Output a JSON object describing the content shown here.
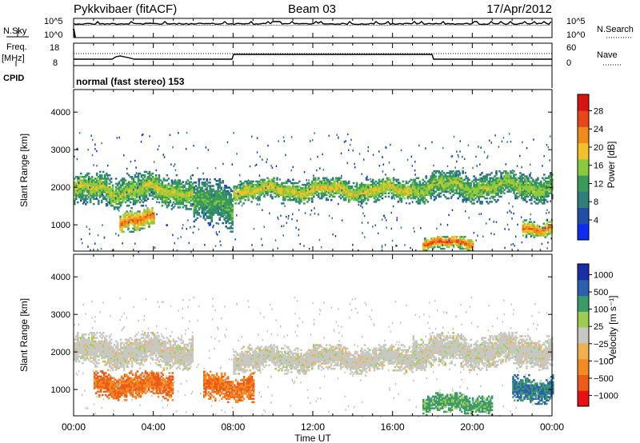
{
  "header": {
    "station": "Pykkvibaer (fitACF)",
    "beam": "Beam 03",
    "date": "17/Apr/2012"
  },
  "panels": {
    "nsky": {
      "label": "N.Sky",
      "ticks": [
        "10^5",
        "10^0"
      ],
      "right_ticks": [
        "10^5",
        "10^0"
      ],
      "right_label": "N.Search"
    },
    "freq": {
      "label": "Freq.",
      "unit": "[MHz]",
      "ticks": [
        "18",
        "8"
      ],
      "right_ticks": [
        "60",
        "0"
      ],
      "right_label": "Nave"
    },
    "cpid": {
      "label": "CPID",
      "text": "normal (fast stereo) 153"
    }
  },
  "x_axis": {
    "label": "Time UT",
    "ticks": [
      "00:00",
      "04:00",
      "08:00",
      "12:00",
      "16:00",
      "20:00",
      "00:00"
    ]
  },
  "colors": {
    "power_scale": [
      "#0d2cf0",
      "#204fa8",
      "#2f7f7a",
      "#3a9a5a",
      "#8acb3d",
      "#f2c028",
      "#f08a1c",
      "#e8461a",
      "#d81410"
    ],
    "velocity_scale": [
      "#e81010",
      "#ee5a18",
      "#f48b22",
      "#f0b050",
      "#c8c8c2",
      "#9ccc50",
      "#3a9a6a",
      "#2c5fb0",
      "#1a2ea8"
    ]
  },
  "chart_data": [
    {
      "type": "heatmap",
      "name": "power",
      "ylabel": "Slant Range [km]",
      "yticks": [
        "4000",
        "3000",
        "2000",
        "1000"
      ],
      "ylim": [
        300,
        4600
      ],
      "xlim_hours": [
        0,
        24
      ],
      "colorbar": {
        "label": "Power [dB]",
        "ticks": [
          "28",
          "24",
          "20",
          "16",
          "12",
          "8",
          "4"
        ],
        "range": [
          0,
          32
        ]
      },
      "features": [
        {
          "t0": 0,
          "t1": 6,
          "r_center": 1900,
          "r_width": 500,
          "level": 18
        },
        {
          "t0": 6,
          "t1": 8,
          "r_center": 1500,
          "r_width": 700,
          "level": 14
        },
        {
          "t0": 8,
          "t1": 17,
          "r_center": 1900,
          "r_width": 350,
          "level": 20
        },
        {
          "t0": 17,
          "t1": 24,
          "r_center": 2000,
          "r_width": 450,
          "level": 17
        },
        {
          "t0": 2.3,
          "t1": 4,
          "r_center": 1100,
          "r_width": 350,
          "level": 26
        },
        {
          "t0": 17.5,
          "t1": 20,
          "r_center": 500,
          "r_width": 200,
          "level": 28
        },
        {
          "t0": 22.5,
          "t1": 24,
          "r_center": 900,
          "r_width": 250,
          "level": 26
        }
      ]
    },
    {
      "type": "heatmap",
      "name": "velocity",
      "ylabel": "Slant Range [km]",
      "yticks": [
        "4000",
        "3000",
        "2000",
        "1000"
      ],
      "ylim": [
        300,
        4600
      ],
      "xlim_hours": [
        0,
        24
      ],
      "colorbar": {
        "label": "Velocity [m s⁻¹]",
        "ticks": [
          "1000",
          "500",
          "100",
          "25",
          "−25",
          "−100",
          "−500",
          "−1000"
        ]
      },
      "features": [
        {
          "t0": 0,
          "t1": 6,
          "r_center": 2000,
          "r_width": 500,
          "level": 0
        },
        {
          "t0": 8,
          "t1": 17,
          "r_center": 1800,
          "r_width": 400,
          "level": 0
        },
        {
          "t0": 17,
          "t1": 24,
          "r_center": 2000,
          "r_width": 500,
          "level": 0
        },
        {
          "t0": 1,
          "t1": 5,
          "r_center": 1100,
          "r_width": 400,
          "level": -300
        },
        {
          "t0": 6.5,
          "t1": 9,
          "r_center": 1050,
          "r_width": 450,
          "level": -300
        },
        {
          "t0": 17.5,
          "t1": 21,
          "r_center": 600,
          "r_width": 300,
          "level": 150
        },
        {
          "t0": 22,
          "t1": 24,
          "r_center": 1000,
          "r_width": 400,
          "level": 300
        }
      ]
    }
  ]
}
